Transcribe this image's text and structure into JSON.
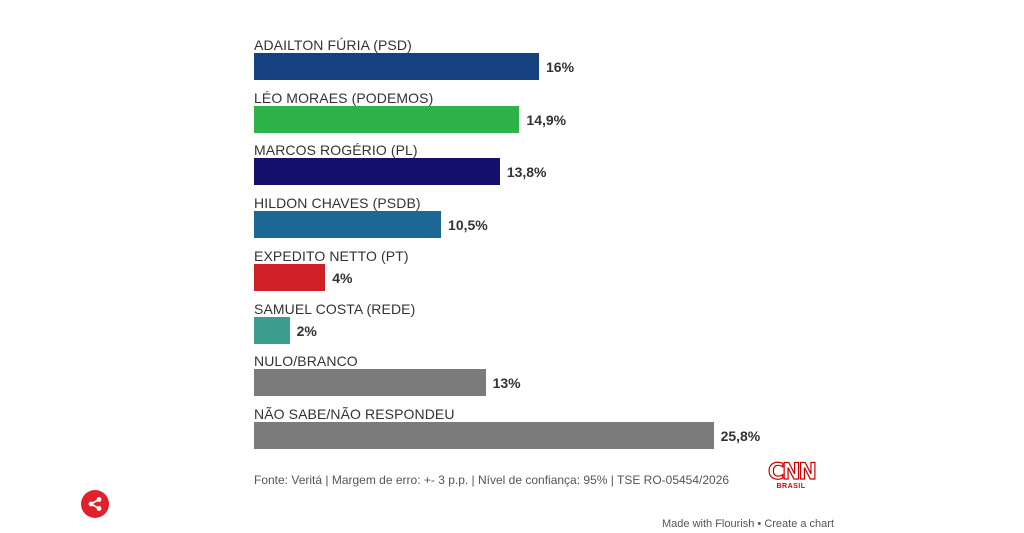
{
  "chart_data": {
    "type": "bar",
    "orientation": "horizontal",
    "categories": [
      "ADAILTON FÚRIA (PSD)",
      "LÉO MORAES (PODEMOS)",
      "MARCOS ROGÉRIO (PL)",
      "HILDON CHAVES (PSDB)",
      "EXPEDITO NETTO (PT)",
      "SAMUEL COSTA (REDE)",
      "NULO/BRANCO",
      "NÃO SABE/NÃO RESPONDEU"
    ],
    "values": [
      16,
      14.9,
      13.8,
      10.5,
      4,
      2,
      13,
      25.8
    ],
    "value_labels": [
      "16%",
      "14,9%",
      "13,8%",
      "10,5%",
      "4%",
      "2%",
      "13%",
      "25,8%"
    ],
    "colors": [
      "#15427f",
      "#2db34a",
      "#150f6e",
      "#1d6797",
      "#d02027",
      "#3b9e8c",
      "#7b7b7b",
      "#7b7b7b"
    ],
    "xlim": [
      0,
      30
    ],
    "grid": false,
    "legend": "none"
  },
  "source": "Fonte: Veritá | Margem de erro: +- 3 p.p. | Nível de confiança: 95% | TSE RO-05454/2026",
  "logo": {
    "main": "CNN",
    "sub": "BRASIL",
    "color": "#cc0000"
  },
  "share": {
    "icon": "share-icon",
    "color": "#e0202a"
  },
  "footer": {
    "made_with": "Made with Flourish",
    "separator": "•",
    "create": "Create a chart"
  }
}
